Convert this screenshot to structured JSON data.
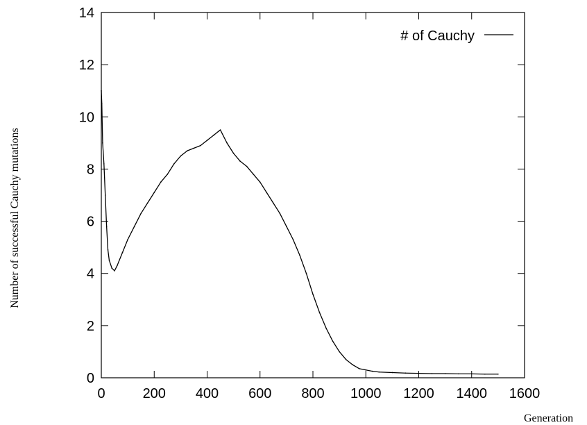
{
  "chart_data": {
    "type": "line",
    "title": "",
    "xlabel": "Generation",
    "ylabel": "Number of successful Cauchy mutations",
    "xlim": [
      0,
      1600
    ],
    "ylim": [
      0,
      14
    ],
    "xticks": [
      0,
      200,
      400,
      600,
      800,
      1000,
      1200,
      1400,
      1600
    ],
    "yticks": [
      0,
      2,
      4,
      6,
      8,
      10,
      12,
      14
    ],
    "grid": false,
    "legend_position": "top-right",
    "series": [
      {
        "name": "# of Cauchy",
        "color": "#000000",
        "x": [
          0,
          2,
          5,
          10,
          15,
          20,
          25,
          30,
          40,
          50,
          60,
          80,
          100,
          125,
          150,
          175,
          200,
          225,
          250,
          275,
          300,
          325,
          350,
          375,
          400,
          425,
          450,
          475,
          500,
          525,
          550,
          575,
          600,
          625,
          650,
          675,
          700,
          725,
          750,
          775,
          800,
          825,
          850,
          875,
          900,
          925,
          950,
          975,
          1000,
          1025,
          1050,
          1100,
          1150,
          1200,
          1250,
          1300,
          1350,
          1400,
          1450,
          1500
        ],
        "values": [
          11,
          10.5,
          9,
          8.2,
          7,
          5.8,
          4.9,
          4.5,
          4.2,
          4.1,
          4.3,
          4.8,
          5.3,
          5.8,
          6.3,
          6.7,
          7.1,
          7.5,
          7.8,
          8.2,
          8.5,
          8.7,
          8.8,
          8.9,
          9.1,
          9.3,
          9.5,
          9.0,
          8.6,
          8.3,
          8.1,
          7.8,
          7.5,
          7.1,
          6.7,
          6.3,
          5.8,
          5.3,
          4.7,
          4.0,
          3.2,
          2.5,
          1.9,
          1.4,
          1.0,
          0.7,
          0.5,
          0.35,
          0.3,
          0.25,
          0.22,
          0.2,
          0.18,
          0.17,
          0.16,
          0.16,
          0.15,
          0.15,
          0.14,
          0.14
        ]
      }
    ]
  }
}
